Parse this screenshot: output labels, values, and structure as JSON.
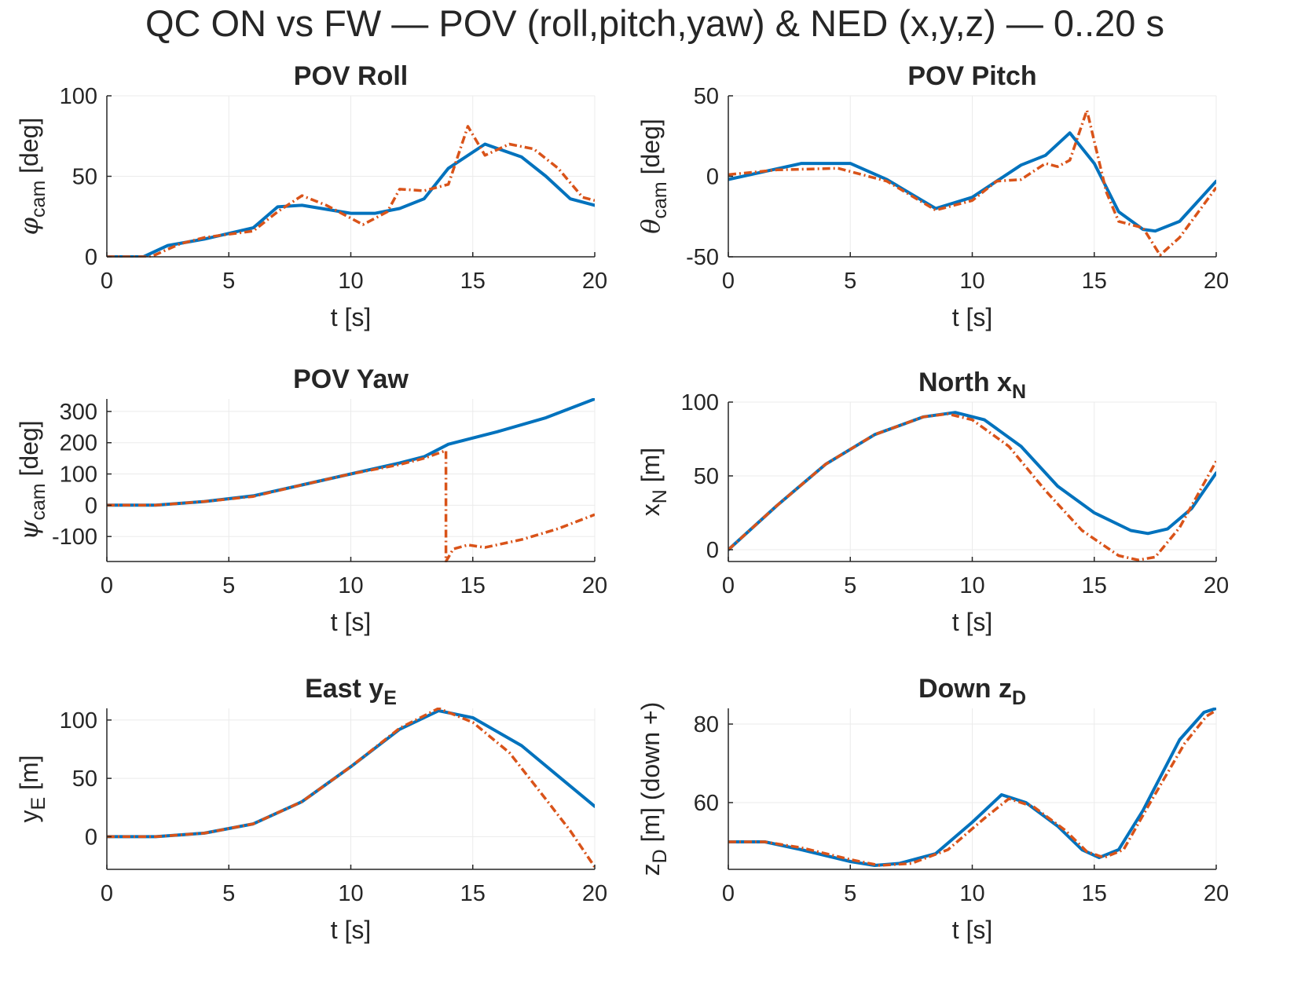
{
  "figure": {
    "title": "QC ON vs FW — POV (roll,pitch,yaw) & NED (x,y,z) — 0..20 s"
  },
  "colors": {
    "on": "#0072BD",
    "fw": "#D95319",
    "axis": "#262626",
    "grid": "#EBEBEB"
  },
  "chart_data": [
    {
      "id": "roll",
      "type": "line",
      "title": "POV Roll",
      "xlabel": "t [s]",
      "ylabel_symbol": "φ",
      "ylabel_sub": "cam",
      "ylabel_rest": " [deg]",
      "xlim": [
        0,
        20
      ],
      "ylim": [
        0,
        100
      ],
      "xticks": [
        0,
        5,
        10,
        15,
        20
      ],
      "yticks": [
        0,
        50,
        100
      ],
      "ytick_labels": [
        "0",
        "50",
        "100"
      ],
      "series": [
        {
          "style": "on",
          "points": [
            [
              0,
              0
            ],
            [
              1.5,
              0
            ],
            [
              2.5,
              7
            ],
            [
              4,
              11
            ],
            [
              6,
              18
            ],
            [
              7,
              31
            ],
            [
              8,
              32
            ],
            [
              10,
              27
            ],
            [
              11,
              27
            ],
            [
              12,
              30
            ],
            [
              13,
              36
            ],
            [
              14,
              55
            ],
            [
              15.5,
              70
            ],
            [
              17,
              62
            ],
            [
              18,
              50
            ],
            [
              19,
              36
            ],
            [
              20,
              32
            ]
          ]
        },
        {
          "style": "fw",
          "points": [
            [
              0,
              0
            ],
            [
              1.8,
              0
            ],
            [
              3,
              8
            ],
            [
              4,
              12
            ],
            [
              6,
              16
            ],
            [
              7,
              28
            ],
            [
              8,
              38
            ],
            [
              9,
              32
            ],
            [
              10.5,
              20
            ],
            [
              11.5,
              28
            ],
            [
              12,
              42
            ],
            [
              13,
              41
            ],
            [
              14,
              45
            ],
            [
              14.8,
              81
            ],
            [
              15.5,
              63
            ],
            [
              16.5,
              70
            ],
            [
              17.5,
              67
            ],
            [
              18.5,
              55
            ],
            [
              19.5,
              37
            ],
            [
              20,
              35
            ]
          ]
        }
      ]
    },
    {
      "id": "pitch",
      "type": "line",
      "title": "POV Pitch",
      "xlabel": "t [s]",
      "ylabel_symbol": "θ",
      "ylabel_sub": "cam",
      "ylabel_rest": " [deg]",
      "xlim": [
        0,
        20
      ],
      "ylim": [
        -50,
        50
      ],
      "xticks": [
        0,
        5,
        10,
        15,
        20
      ],
      "yticks": [
        -50,
        0,
        50
      ],
      "ytick_labels": [
        "-50",
        "0",
        "50"
      ],
      "series": [
        {
          "style": "on",
          "points": [
            [
              0,
              -2
            ],
            [
              1.5,
              3
            ],
            [
              3,
              8
            ],
            [
              5,
              8
            ],
            [
              6.5,
              -2
            ],
            [
              8.5,
              -20
            ],
            [
              10,
              -13
            ],
            [
              11,
              -3
            ],
            [
              12,
              7
            ],
            [
              13,
              13
            ],
            [
              14,
              27
            ],
            [
              15,
              8
            ],
            [
              16,
              -22
            ],
            [
              17,
              -33
            ],
            [
              17.5,
              -34
            ],
            [
              18.5,
              -28
            ],
            [
              20,
              -3
            ]
          ]
        },
        {
          "style": "fw",
          "points": [
            [
              0,
              1
            ],
            [
              2,
              4
            ],
            [
              4.5,
              5
            ],
            [
              6.5,
              -3
            ],
            [
              8.5,
              -21
            ],
            [
              10,
              -15
            ],
            [
              11,
              -3
            ],
            [
              12,
              -2
            ],
            [
              13,
              8
            ],
            [
              13.5,
              6
            ],
            [
              14,
              10
            ],
            [
              14.7,
              41
            ],
            [
              15.5,
              -10
            ],
            [
              16,
              -28
            ],
            [
              17,
              -32
            ],
            [
              17.7,
              -49
            ],
            [
              18.5,
              -38
            ],
            [
              20,
              -7
            ]
          ]
        }
      ]
    },
    {
      "id": "yaw",
      "type": "line",
      "title": "POV Yaw",
      "xlabel": "t [s]",
      "ylabel_symbol": "ψ",
      "ylabel_sub": "cam",
      "ylabel_rest": " [deg]",
      "xlim": [
        0,
        20
      ],
      "ylim": [
        -180,
        340
      ],
      "xticks": [
        0,
        5,
        10,
        15,
        20
      ],
      "yticks": [
        -100,
        0,
        100,
        200,
        300
      ],
      "ytick_labels": [
        "-100",
        "0",
        "100",
        "200",
        "300"
      ],
      "series": [
        {
          "style": "on",
          "points": [
            [
              0,
              0
            ],
            [
              2,
              0
            ],
            [
              4,
              12
            ],
            [
              6,
              30
            ],
            [
              8,
              65
            ],
            [
              10,
              100
            ],
            [
              12,
              135
            ],
            [
              13,
              155
            ],
            [
              14,
              195
            ],
            [
              16,
              235
            ],
            [
              18,
              280
            ],
            [
              20,
              340
            ]
          ]
        },
        {
          "style": "fw",
          "points": [
            [
              0,
              0
            ],
            [
              2,
              0
            ],
            [
              4,
              12
            ],
            [
              6,
              28
            ],
            [
              8,
              65
            ],
            [
              10,
              100
            ],
            [
              12,
              130
            ],
            [
              13,
              150
            ],
            [
              13.9,
              175
            ],
            [
              13.9,
              -180
            ],
            [
              14.2,
              -140
            ],
            [
              14.8,
              -127
            ],
            [
              15.5,
              -135
            ],
            [
              17,
              -110
            ],
            [
              18.5,
              -75
            ],
            [
              20,
              -30
            ]
          ]
        }
      ]
    },
    {
      "id": "north",
      "type": "line",
      "title": "North x",
      "title_sub": "N",
      "xlabel": "t [s]",
      "ylabel_symbol": "x",
      "ylabel_sub": "N",
      "ylabel_rest": " [m]",
      "xlim": [
        0,
        20
      ],
      "ylim": [
        -8,
        100
      ],
      "xticks": [
        0,
        5,
        10,
        15,
        20
      ],
      "yticks": [
        0,
        50,
        100
      ],
      "ytick_labels": [
        "0",
        "50",
        "100"
      ],
      "series": [
        {
          "style": "on",
          "points": [
            [
              0,
              0
            ],
            [
              2,
              30
            ],
            [
              4,
              58
            ],
            [
              6,
              78
            ],
            [
              8,
              90
            ],
            [
              9.3,
              93
            ],
            [
              10.5,
              88
            ],
            [
              12,
              70
            ],
            [
              13.5,
              43
            ],
            [
              15,
              25
            ],
            [
              16.5,
              13
            ],
            [
              17.2,
              11
            ],
            [
              18,
              14
            ],
            [
              19,
              28
            ],
            [
              20,
              52
            ]
          ]
        },
        {
          "style": "fw",
          "points": [
            [
              0,
              0
            ],
            [
              2,
              30
            ],
            [
              4,
              58
            ],
            [
              6,
              78
            ],
            [
              8,
              90
            ],
            [
              9,
              92
            ],
            [
              10,
              88
            ],
            [
              11.5,
              70
            ],
            [
              13,
              40
            ],
            [
              14.5,
              13
            ],
            [
              16,
              -4
            ],
            [
              16.8,
              -7
            ],
            [
              17.5,
              -5
            ],
            [
              18.5,
              15
            ],
            [
              20,
              60
            ]
          ]
        }
      ]
    },
    {
      "id": "east",
      "type": "line",
      "title": "East y",
      "title_sub": "E",
      "xlabel": "t [s]",
      "ylabel_symbol": "y",
      "ylabel_sub": "E",
      "ylabel_rest": " [m]",
      "xlim": [
        0,
        20
      ],
      "ylim": [
        -28,
        110
      ],
      "xticks": [
        0,
        5,
        10,
        15,
        20
      ],
      "yticks": [
        0,
        50,
        100
      ],
      "ytick_labels": [
        "0",
        "50",
        "100"
      ],
      "series": [
        {
          "style": "on",
          "points": [
            [
              0,
              0
            ],
            [
              2,
              0
            ],
            [
              4,
              3
            ],
            [
              6,
              11
            ],
            [
              8,
              30
            ],
            [
              10,
              60
            ],
            [
              12,
              92
            ],
            [
              13.6,
              108
            ],
            [
              15,
              102
            ],
            [
              17,
              78
            ],
            [
              18.5,
              52
            ],
            [
              20,
              26
            ]
          ]
        },
        {
          "style": "fw",
          "points": [
            [
              0,
              0
            ],
            [
              2,
              0
            ],
            [
              4,
              3
            ],
            [
              6,
              11
            ],
            [
              8,
              30
            ],
            [
              10,
              60
            ],
            [
              12,
              93
            ],
            [
              13.6,
              110
            ],
            [
              15,
              98
            ],
            [
              16.5,
              72
            ],
            [
              18,
              32
            ],
            [
              19,
              5
            ],
            [
              20,
              -26
            ]
          ]
        }
      ]
    },
    {
      "id": "down",
      "type": "line",
      "title": "Down z",
      "title_sub": "D",
      "xlabel": "t [s]",
      "ylabel_symbol": "z",
      "ylabel_sub": "D",
      "ylabel_rest": " [m] (down +)",
      "xlim": [
        0,
        20
      ],
      "ylim": [
        43,
        84
      ],
      "xticks": [
        0,
        5,
        10,
        15,
        20
      ],
      "yticks": [
        60,
        80
      ],
      "ytick_labels": [
        "60",
        "80"
      ],
      "series": [
        {
          "style": "on",
          "points": [
            [
              0,
              50
            ],
            [
              1.5,
              50
            ],
            [
              3,
              48
            ],
            [
              5,
              45
            ],
            [
              6,
              44
            ],
            [
              7,
              44.5
            ],
            [
              8.5,
              47
            ],
            [
              10,
              55
            ],
            [
              11.2,
              62
            ],
            [
              12.2,
              60
            ],
            [
              13.5,
              54
            ],
            [
              14.5,
              48
            ],
            [
              15.2,
              46
            ],
            [
              16,
              48
            ],
            [
              17,
              58
            ],
            [
              18.5,
              76
            ],
            [
              19.5,
              83
            ],
            [
              20,
              84
            ]
          ]
        },
        {
          "style": "fw",
          "points": [
            [
              0,
              50
            ],
            [
              1.5,
              50
            ],
            [
              3,
              48.5
            ],
            [
              5,
              45.5
            ],
            [
              6.2,
              44
            ],
            [
              7.5,
              44.5
            ],
            [
              9,
              48
            ],
            [
              10.5,
              56
            ],
            [
              11.5,
              61
            ],
            [
              12.5,
              59
            ],
            [
              13.8,
              53
            ],
            [
              14.7,
              47.5
            ],
            [
              15.4,
              46
            ],
            [
              16.2,
              48
            ],
            [
              17.2,
              59
            ],
            [
              18.7,
              75
            ],
            [
              19.6,
              82
            ],
            [
              20,
              83.5
            ]
          ]
        }
      ]
    }
  ]
}
